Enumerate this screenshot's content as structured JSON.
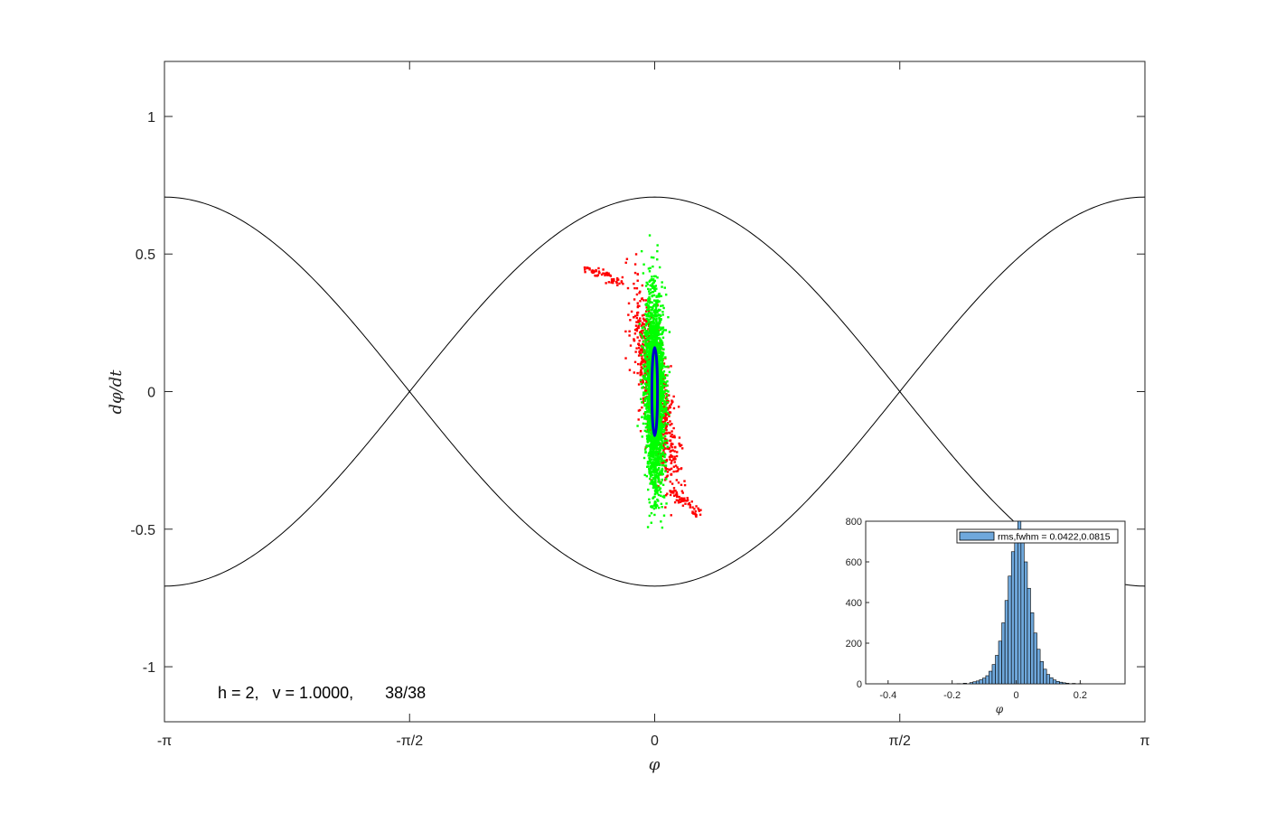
{
  "chart_data": [
    {
      "type": "scatter",
      "xlabel": "φ",
      "ylabel": "dφ/dt",
      "xlim": [
        -3.14159,
        3.14159
      ],
      "ylim": [
        -1.2,
        1.2
      ],
      "x_ticks": [
        {
          "v": -3.14159,
          "label": "-π"
        },
        {
          "v": -1.5708,
          "label": "-π/2"
        },
        {
          "v": 0,
          "label": "0"
        },
        {
          "v": 1.5708,
          "label": "π/2"
        },
        {
          "v": 3.14159,
          "label": "π"
        }
      ],
      "y_ticks": [
        {
          "v": -1,
          "label": "-1"
        },
        {
          "v": -0.5,
          "label": "-0.5"
        },
        {
          "v": 0,
          "label": "0"
        },
        {
          "v": 0.5,
          "label": "0.5"
        },
        {
          "v": 1,
          "label": "1"
        }
      ],
      "grid": false,
      "annotation": "h = 2,   v = 1.0000,       38/38",
      "separatrix": {
        "amplitude": 0.707,
        "color": "#000000"
      },
      "series": [
        {
          "color": "#ff0000",
          "kind": "points",
          "spread_x": 0.045,
          "spread_y": 0.17,
          "tail": [
            [
              -0.45,
              0.45
            ],
            [
              -0.2,
              0.44
            ],
            [
              0.1,
              -0.36
            ],
            [
              0.3,
              -0.45
            ]
          ]
        },
        {
          "color": "#00ff00",
          "kind": "points",
          "spread_x": 0.03,
          "spread_y": 0.17,
          "extent_y": [
            -0.53,
            0.57
          ]
        },
        {
          "color": "#0000cc",
          "kind": "ellipse",
          "center": [
            0,
            0
          ],
          "semi_axes": [
            0.018,
            0.16
          ]
        }
      ]
    },
    {
      "type": "bar",
      "xlabel": "φ",
      "xlim": [
        -0.47,
        0.34
      ],
      "ylim": [
        0,
        800
      ],
      "x_ticks": [
        -0.4,
        -0.2,
        0,
        0.2
      ],
      "y_ticks": [
        0,
        200,
        400,
        600,
        800
      ],
      "bar_color": "#6fa8dc",
      "legend": "rms,fwhm = 0.0422,0.0815",
      "bins": [
        [
          -0.18,
          1
        ],
        [
          -0.16,
          3
        ],
        [
          -0.14,
          6
        ],
        [
          -0.13,
          10
        ],
        [
          -0.12,
          14
        ],
        [
          -0.11,
          20
        ],
        [
          -0.1,
          28
        ],
        [
          -0.09,
          40
        ],
        [
          -0.08,
          62
        ],
        [
          -0.07,
          95
        ],
        [
          -0.06,
          140
        ],
        [
          -0.05,
          210
        ],
        [
          -0.04,
          300
        ],
        [
          -0.03,
          410
        ],
        [
          -0.02,
          530
        ],
        [
          -0.01,
          650
        ],
        [
          0.0,
          760
        ],
        [
          0.01,
          810
        ],
        [
          0.02,
          730
        ],
        [
          0.03,
          600
        ],
        [
          0.04,
          470
        ],
        [
          0.05,
          350
        ],
        [
          0.06,
          250
        ],
        [
          0.07,
          170
        ],
        [
          0.08,
          110
        ],
        [
          0.09,
          72
        ],
        [
          0.1,
          46
        ],
        [
          0.11,
          30
        ],
        [
          0.12,
          19
        ],
        [
          0.13,
          12
        ],
        [
          0.14,
          8
        ],
        [
          0.15,
          5
        ],
        [
          0.16,
          3
        ],
        [
          0.18,
          2
        ],
        [
          0.2,
          1
        ]
      ]
    }
  ]
}
